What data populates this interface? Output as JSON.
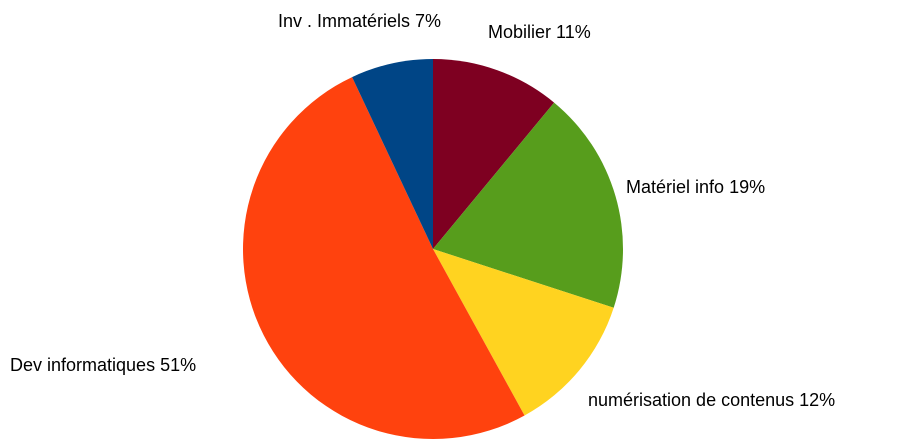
{
  "chart_data": {
    "type": "pie",
    "categories": [
      "Mobilier",
      "Matériel info",
      "numérisation de contenus",
      "Dev informatiques",
      "Inv . Immatériels"
    ],
    "values": [
      11,
      19,
      12,
      51,
      7
    ],
    "value_labels": [
      "11%",
      "19%",
      "12%",
      "51%",
      "7%"
    ],
    "colors": [
      "#7e0021",
      "#579d1c",
      "#ffd320",
      "#ff420e",
      "#004586"
    ]
  }
}
